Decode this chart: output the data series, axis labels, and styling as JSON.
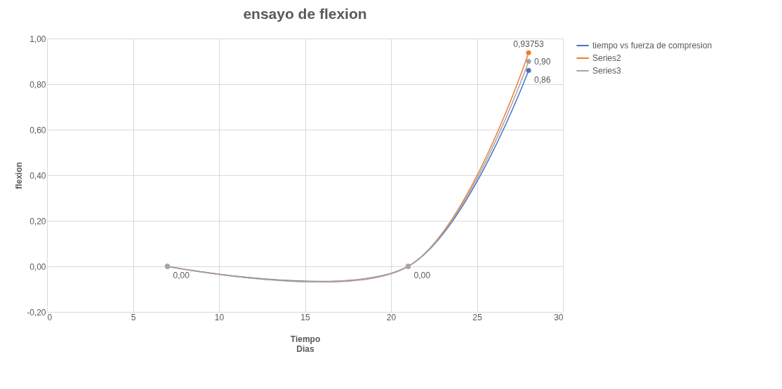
{
  "chart_data": {
    "type": "line",
    "title": "ensayo de flexion",
    "xlabel": "Tiempo\nDias",
    "ylabel": "flexion",
    "x": [
      7,
      21,
      28
    ],
    "series": [
      {
        "name": "tiempo vs fuerza de compresion",
        "color": "#4472c4",
        "values": [
          0,
          0,
          0.86
        ],
        "value_labels": [
          "0,00",
          "0,00",
          "0,86"
        ]
      },
      {
        "name": "Series2",
        "color": "#ed7d31",
        "values": [
          0,
          0,
          0.93753
        ],
        "value_labels": [
          null,
          null,
          "0,93753"
        ]
      },
      {
        "name": "Series3",
        "color": "#a5a5a5",
        "values": [
          0,
          0,
          0.9
        ],
        "value_labels": [
          null,
          null,
          "0,90"
        ]
      }
    ],
    "xlim": [
      0,
      30
    ],
    "xticks": [
      0,
      5,
      10,
      15,
      20,
      25,
      30
    ],
    "ylim": [
      -0.2,
      1.0
    ],
    "yticks": [
      {
        "value": -0.2,
        "label": "-0,20"
      },
      {
        "value": 0,
        "label": "0,00"
      },
      {
        "value": 0.2,
        "label": "0,20"
      },
      {
        "value": 0.4,
        "label": "0,40"
      },
      {
        "value": 0.6,
        "label": "0,60"
      },
      {
        "value": 0.8,
        "label": "0,80"
      },
      {
        "value": 1.0,
        "label": "1,00"
      }
    ],
    "grid": true,
    "legend": "right",
    "marker": "circle",
    "line_style": "solid"
  }
}
